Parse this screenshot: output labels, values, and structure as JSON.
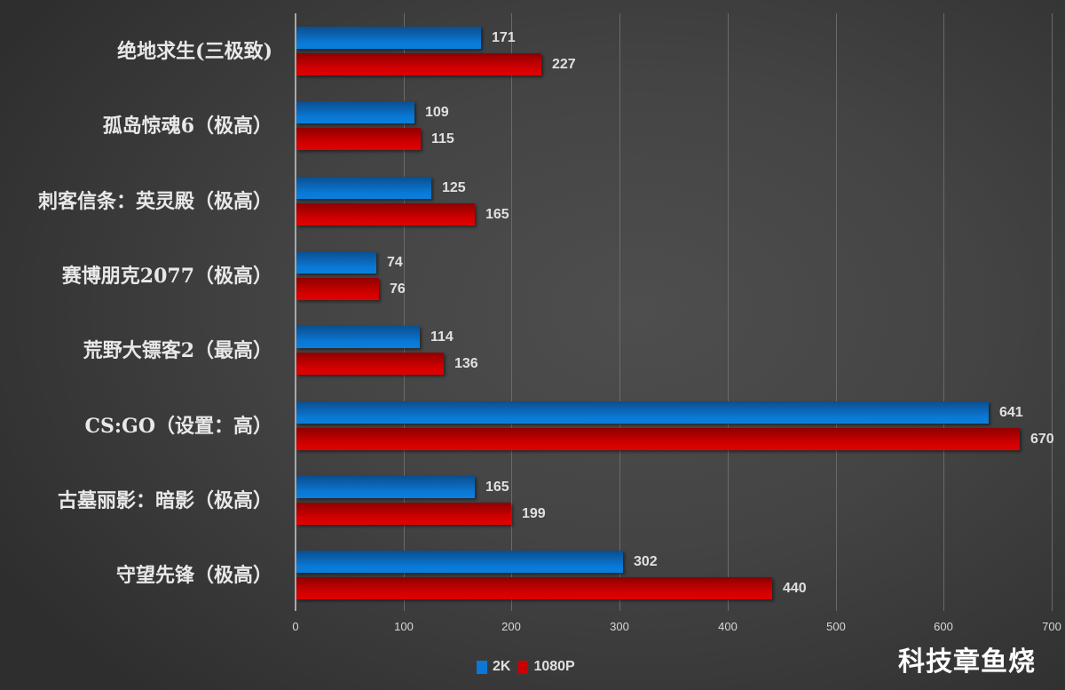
{
  "chart_data": {
    "type": "bar",
    "orientation": "horizontal",
    "title": "",
    "xlabel": "",
    "ylabel": "",
    "xlim": [
      0,
      700
    ],
    "x_ticks": [
      0,
      100,
      200,
      300,
      400,
      500,
      600,
      700
    ],
    "grid": true,
    "legend_position": "bottom",
    "categories": [
      "绝地求生(三极致)",
      "孤岛惊魂6（极高）",
      "刺客信条：英灵殿（极高）",
      "赛博朋克2077（极高）",
      "荒野大镖客2（最高）",
      "CS:GO（设置：高）",
      "古墓丽影：暗影（极高）",
      "守望先锋（极高）"
    ],
    "series": [
      {
        "name": "2K",
        "color": "#0a78d4",
        "values": [
          171,
          109,
          125,
          74,
          114,
          641,
          165,
          302
        ]
      },
      {
        "name": "1080P",
        "color": "#d40000",
        "values": [
          227,
          115,
          165,
          76,
          136,
          670,
          199,
          440
        ]
      }
    ]
  },
  "legend": {
    "items": [
      {
        "label": "2K",
        "color": "#0a78d4"
      },
      {
        "label": "1080P",
        "color": "#d40000"
      }
    ]
  },
  "watermark": "科技章鱼烧"
}
